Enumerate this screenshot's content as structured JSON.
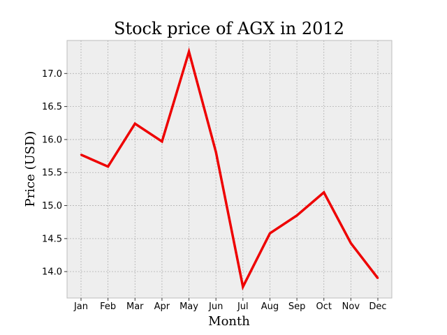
{
  "chart_data": {
    "type": "line",
    "title": "Stock price of AGX in 2012",
    "xlabel": "Month",
    "ylabel": "Price (USD)",
    "categories": [
      "Jan",
      "Feb",
      "Mar",
      "Apr",
      "May",
      "Jun",
      "Jul",
      "Aug",
      "Sep",
      "Oct",
      "Nov",
      "Dec"
    ],
    "series": [
      {
        "values": [
          15.77,
          15.59,
          16.24,
          15.97,
          17.33,
          15.81,
          13.77,
          14.58,
          14.85,
          15.2,
          14.43,
          13.9
        ],
        "color": "#ee0000"
      }
    ],
    "ylim": [
      13.6,
      17.5
    ],
    "yticks": [
      14.0,
      14.5,
      15.0,
      15.5,
      16.0,
      16.5,
      17.0
    ],
    "ytick_labels": [
      "14.0",
      "14.5",
      "15.0",
      "15.5",
      "16.0",
      "16.5",
      "17.0"
    ],
    "grid": true,
    "legend": false,
    "plot_background": "#eeeeee",
    "grid_color": "#b0b0b0"
  }
}
